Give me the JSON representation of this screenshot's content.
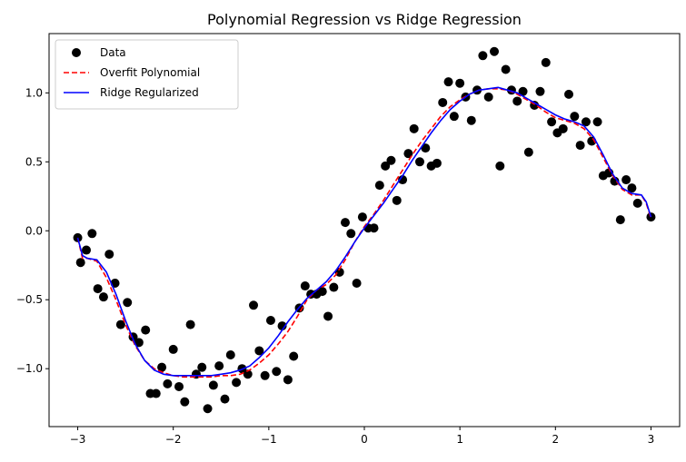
{
  "chart_data": {
    "type": "scatter",
    "title": "Polynomial Regression vs Ridge Regression",
    "xlabel": "",
    "ylabel": "",
    "xlim": [
      -3.3,
      3.3
    ],
    "ylim": [
      -1.42,
      1.43
    ],
    "xticks": [
      -3,
      -2,
      -1,
      0,
      1,
      2,
      3
    ],
    "xtick_labels": [
      "−3",
      "−2",
      "−1",
      "0",
      "1",
      "2",
      "3"
    ],
    "yticks": [
      -1.0,
      -0.5,
      0.0,
      0.5,
      1.0
    ],
    "ytick_labels": [
      "−1.0",
      "−0.5",
      "0.0",
      "0.5",
      "1.0"
    ],
    "grid": false,
    "legend": {
      "placement": "upper left"
    },
    "series": [
      {
        "name": "Data",
        "kind": "scatter",
        "color": "#000000",
        "points": [
          [
            -3.0,
            -0.05
          ],
          [
            -2.97,
            -0.23
          ],
          [
            -2.91,
            -0.14
          ],
          [
            -2.85,
            -0.02
          ],
          [
            -2.79,
            -0.42
          ],
          [
            -2.73,
            -0.48
          ],
          [
            -2.67,
            -0.17
          ],
          [
            -2.61,
            -0.38
          ],
          [
            -2.55,
            -0.68
          ],
          [
            -2.48,
            -0.52
          ],
          [
            -2.42,
            -0.77
          ],
          [
            -2.36,
            -0.81
          ],
          [
            -2.29,
            -0.72
          ],
          [
            -2.24,
            -1.18
          ],
          [
            -2.18,
            -1.18
          ],
          [
            -2.12,
            -0.99
          ],
          [
            -2.06,
            -1.11
          ],
          [
            -2.0,
            -0.86
          ],
          [
            -1.94,
            -1.13
          ],
          [
            -1.88,
            -1.24
          ],
          [
            -1.82,
            -0.68
          ],
          [
            -1.76,
            -1.04
          ],
          [
            -1.7,
            -0.99
          ],
          [
            -1.64,
            -1.29
          ],
          [
            -1.58,
            -1.12
          ],
          [
            -1.52,
            -0.98
          ],
          [
            -1.46,
            -1.22
          ],
          [
            -1.4,
            -0.9
          ],
          [
            -1.34,
            -1.1
          ],
          [
            -1.28,
            -1.0
          ],
          [
            -1.22,
            -1.04
          ],
          [
            -1.16,
            -0.54
          ],
          [
            -1.1,
            -0.87
          ],
          [
            -1.04,
            -1.05
          ],
          [
            -0.98,
            -0.65
          ],
          [
            -0.92,
            -1.02
          ],
          [
            -0.86,
            -0.69
          ],
          [
            -0.8,
            -1.08
          ],
          [
            -0.74,
            -0.91
          ],
          [
            -0.68,
            -0.56
          ],
          [
            -0.62,
            -0.4
          ],
          [
            -0.56,
            -0.46
          ],
          [
            -0.5,
            -0.46
          ],
          [
            -0.44,
            -0.44
          ],
          [
            -0.38,
            -0.62
          ],
          [
            -0.32,
            -0.41
          ],
          [
            -0.26,
            -0.3
          ],
          [
            -0.2,
            0.06
          ],
          [
            -0.14,
            -0.02
          ],
          [
            -0.08,
            -0.38
          ],
          [
            -0.02,
            0.1
          ],
          [
            0.04,
            0.02
          ],
          [
            0.1,
            0.02
          ],
          [
            0.16,
            0.33
          ],
          [
            0.22,
            0.47
          ],
          [
            0.28,
            0.51
          ],
          [
            0.34,
            0.22
          ],
          [
            0.4,
            0.37
          ],
          [
            0.46,
            0.56
          ],
          [
            0.52,
            0.74
          ],
          [
            0.58,
            0.5
          ],
          [
            0.64,
            0.6
          ],
          [
            0.7,
            0.47
          ],
          [
            0.76,
            0.49
          ],
          [
            0.82,
            0.93
          ],
          [
            0.88,
            1.08
          ],
          [
            0.94,
            0.83
          ],
          [
            1.0,
            1.07
          ],
          [
            1.06,
            0.97
          ],
          [
            1.12,
            0.8
          ],
          [
            1.18,
            1.02
          ],
          [
            1.24,
            1.27
          ],
          [
            1.3,
            0.97
          ],
          [
            1.36,
            1.3
          ],
          [
            1.42,
            0.47
          ],
          [
            1.48,
            1.17
          ],
          [
            1.54,
            1.02
          ],
          [
            1.6,
            0.94
          ],
          [
            1.66,
            1.01
          ],
          [
            1.72,
            0.57
          ],
          [
            1.78,
            0.91
          ],
          [
            1.84,
            1.01
          ],
          [
            1.9,
            1.22
          ],
          [
            1.96,
            0.79
          ],
          [
            2.02,
            0.71
          ],
          [
            2.08,
            0.74
          ],
          [
            2.14,
            0.99
          ],
          [
            2.2,
            0.83
          ],
          [
            2.26,
            0.62
          ],
          [
            2.32,
            0.79
          ],
          [
            2.38,
            0.65
          ],
          [
            2.44,
            0.79
          ],
          [
            2.5,
            0.4
          ],
          [
            2.56,
            0.42
          ],
          [
            2.62,
            0.36
          ],
          [
            2.68,
            0.08
          ],
          [
            2.74,
            0.37
          ],
          [
            2.8,
            0.31
          ],
          [
            2.86,
            0.2
          ],
          [
            3.0,
            0.1
          ]
        ]
      },
      {
        "name": "Overfit Polynomial",
        "kind": "line",
        "style": "dashed",
        "color": "#ff0000",
        "points": [
          [
            -3.0,
            -0.05
          ],
          [
            -2.95,
            -0.2
          ],
          [
            -2.9,
            -0.2
          ],
          [
            -2.8,
            -0.22
          ],
          [
            -2.7,
            -0.34
          ],
          [
            -2.6,
            -0.5
          ],
          [
            -2.5,
            -0.68
          ],
          [
            -2.4,
            -0.83
          ],
          [
            -2.3,
            -0.94
          ],
          [
            -2.2,
            -1.0
          ],
          [
            -2.1,
            -1.03
          ],
          [
            -2.0,
            -1.05
          ],
          [
            -1.9,
            -1.06
          ],
          [
            -1.8,
            -1.06
          ],
          [
            -1.7,
            -1.06
          ],
          [
            -1.6,
            -1.06
          ],
          [
            -1.5,
            -1.05
          ],
          [
            -1.4,
            -1.05
          ],
          [
            -1.3,
            -1.04
          ],
          [
            -1.2,
            -1.01
          ],
          [
            -1.1,
            -0.96
          ],
          [
            -1.0,
            -0.9
          ],
          [
            -0.9,
            -0.82
          ],
          [
            -0.8,
            -0.73
          ],
          [
            -0.7,
            -0.62
          ],
          [
            -0.6,
            -0.5
          ],
          [
            -0.5,
            -0.43
          ],
          [
            -0.4,
            -0.39
          ],
          [
            -0.3,
            -0.32
          ],
          [
            -0.2,
            -0.21
          ],
          [
            -0.1,
            -0.08
          ],
          [
            0.0,
            0.03
          ],
          [
            0.1,
            0.12
          ],
          [
            0.2,
            0.22
          ],
          [
            0.3,
            0.33
          ],
          [
            0.4,
            0.44
          ],
          [
            0.5,
            0.55
          ],
          [
            0.6,
            0.65
          ],
          [
            0.7,
            0.74
          ],
          [
            0.8,
            0.83
          ],
          [
            0.9,
            0.9
          ],
          [
            1.0,
            0.95
          ],
          [
            1.1,
            0.99
          ],
          [
            1.2,
            1.02
          ],
          [
            1.3,
            1.03
          ],
          [
            1.4,
            1.03
          ],
          [
            1.5,
            1.02
          ],
          [
            1.6,
            0.99
          ],
          [
            1.7,
            0.95
          ],
          [
            1.8,
            0.91
          ],
          [
            1.9,
            0.86
          ],
          [
            2.0,
            0.82
          ],
          [
            2.1,
            0.8
          ],
          [
            2.2,
            0.78
          ],
          [
            2.3,
            0.74
          ],
          [
            2.4,
            0.66
          ],
          [
            2.5,
            0.53
          ],
          [
            2.6,
            0.4
          ],
          [
            2.7,
            0.3
          ],
          [
            2.8,
            0.26
          ],
          [
            2.9,
            0.26
          ],
          [
            2.95,
            0.2
          ],
          [
            3.0,
            0.09
          ]
        ]
      },
      {
        "name": "Ridge Regularized",
        "kind": "line",
        "style": "solid",
        "color": "#0000ff",
        "points": [
          [
            -3.0,
            -0.05
          ],
          [
            -2.95,
            -0.18
          ],
          [
            -2.9,
            -0.2
          ],
          [
            -2.8,
            -0.21
          ],
          [
            -2.7,
            -0.3
          ],
          [
            -2.6,
            -0.46
          ],
          [
            -2.5,
            -0.65
          ],
          [
            -2.4,
            -0.82
          ],
          [
            -2.3,
            -0.94
          ],
          [
            -2.2,
            -1.01
          ],
          [
            -2.1,
            -1.04
          ],
          [
            -2.0,
            -1.05
          ],
          [
            -1.9,
            -1.05
          ],
          [
            -1.8,
            -1.05
          ],
          [
            -1.7,
            -1.05
          ],
          [
            -1.6,
            -1.05
          ],
          [
            -1.5,
            -1.04
          ],
          [
            -1.4,
            -1.03
          ],
          [
            -1.3,
            -1.01
          ],
          [
            -1.2,
            -0.98
          ],
          [
            -1.1,
            -0.92
          ],
          [
            -1.0,
            -0.85
          ],
          [
            -0.9,
            -0.76
          ],
          [
            -0.8,
            -0.66
          ],
          [
            -0.7,
            -0.57
          ],
          [
            -0.6,
            -0.49
          ],
          [
            -0.5,
            -0.43
          ],
          [
            -0.4,
            -0.37
          ],
          [
            -0.3,
            -0.29
          ],
          [
            -0.2,
            -0.19
          ],
          [
            -0.1,
            -0.08
          ],
          [
            0.0,
            0.02
          ],
          [
            0.1,
            0.11
          ],
          [
            0.2,
            0.2
          ],
          [
            0.3,
            0.3
          ],
          [
            0.4,
            0.4
          ],
          [
            0.5,
            0.51
          ],
          [
            0.6,
            0.61
          ],
          [
            0.7,
            0.71
          ],
          [
            0.8,
            0.8
          ],
          [
            0.9,
            0.88
          ],
          [
            1.0,
            0.94
          ],
          [
            1.1,
            0.99
          ],
          [
            1.2,
            1.02
          ],
          [
            1.3,
            1.03
          ],
          [
            1.4,
            1.04
          ],
          [
            1.5,
            1.02
          ],
          [
            1.6,
            1.0
          ],
          [
            1.7,
            0.96
          ],
          [
            1.8,
            0.92
          ],
          [
            1.9,
            0.88
          ],
          [
            2.0,
            0.84
          ],
          [
            2.1,
            0.81
          ],
          [
            2.2,
            0.79
          ],
          [
            2.3,
            0.76
          ],
          [
            2.4,
            0.68
          ],
          [
            2.5,
            0.55
          ],
          [
            2.6,
            0.41
          ],
          [
            2.7,
            0.31
          ],
          [
            2.8,
            0.27
          ],
          [
            2.9,
            0.26
          ],
          [
            2.95,
            0.21
          ],
          [
            3.0,
            0.1
          ]
        ]
      }
    ]
  }
}
